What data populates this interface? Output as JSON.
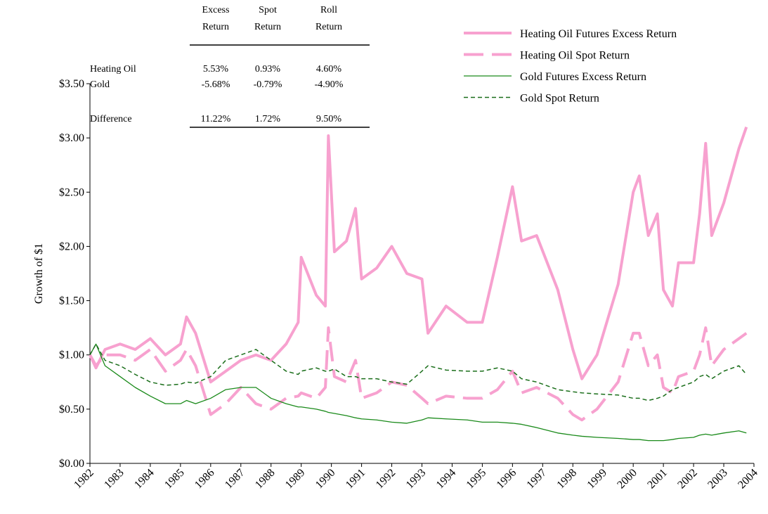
{
  "chart_data": {
    "type": "line",
    "ylabel": "Growth of $1",
    "xlim": [
      1982,
      2004
    ],
    "xticks": [
      1982,
      1983,
      1984,
      1985,
      1986,
      1987,
      1988,
      1989,
      1990,
      1991,
      1992,
      1993,
      1994,
      1995,
      1996,
      1997,
      1998,
      1999,
      2000,
      2001,
      2002,
      2003,
      2004
    ],
    "ylim": [
      0,
      3.5
    ],
    "yticks": [
      {
        "value": 0,
        "label": "$0.00"
      },
      {
        "value": 0.5,
        "label": "$0.50"
      },
      {
        "value": 1,
        "label": "$1.00"
      },
      {
        "value": 1.5,
        "label": "$1.50"
      },
      {
        "value": 2,
        "label": "$2.00"
      },
      {
        "value": 2.5,
        "label": "$2.50"
      },
      {
        "value": 3,
        "label": "$3.00"
      },
      {
        "value": 3.5,
        "label": "$3.50"
      }
    ],
    "legend": "top-right",
    "x": [
      1982.0,
      1982.2,
      1982.5,
      1983.0,
      1983.5,
      1984.0,
      1984.5,
      1985.0,
      1985.2,
      1985.5,
      1986.0,
      1986.5,
      1987.0,
      1987.5,
      1988.0,
      1988.5,
      1988.9,
      1989.0,
      1989.5,
      1989.8,
      1989.9,
      1990.1,
      1990.5,
      1990.8,
      1991.0,
      1991.5,
      1992.0,
      1992.5,
      1993.0,
      1993.2,
      1993.8,
      1994.5,
      1995.0,
      1995.5,
      1996.0,
      1996.3,
      1996.8,
      1997.5,
      1998.0,
      1998.3,
      1998.8,
      1999.5,
      2000.0,
      2000.2,
      2000.5,
      2000.8,
      2001.0,
      2001.3,
      2001.5,
      2002.0,
      2002.2,
      2002.4,
      2002.6,
      2003.0,
      2003.5,
      2003.75
    ],
    "series": [
      {
        "name": "Heating Oil Futures Excess Return",
        "color": "#f7a1cf",
        "style": "solid",
        "width": 4,
        "values": [
          1.0,
          0.88,
          1.05,
          1.1,
          1.05,
          1.15,
          1.0,
          1.1,
          1.35,
          1.2,
          0.75,
          0.85,
          0.95,
          1.0,
          0.95,
          1.1,
          1.3,
          1.9,
          1.55,
          1.45,
          3.02,
          1.95,
          2.05,
          2.35,
          1.7,
          1.8,
          2.0,
          1.75,
          1.7,
          1.2,
          1.45,
          1.3,
          1.3,
          1.9,
          2.55,
          2.05,
          2.1,
          1.6,
          1.05,
          0.78,
          1.0,
          1.65,
          2.5,
          2.65,
          2.1,
          2.3,
          1.6,
          1.45,
          1.85,
          1.85,
          2.3,
          2.95,
          2.1,
          2.4,
          2.9,
          3.1
        ]
      },
      {
        "name": "Heating Oil Spot Return",
        "color": "#f7a1cf",
        "style": "dashed",
        "width": 4,
        "values": [
          1.0,
          0.9,
          1.0,
          1.0,
          0.95,
          1.05,
          0.85,
          0.95,
          1.05,
          0.9,
          0.45,
          0.55,
          0.7,
          0.55,
          0.5,
          0.6,
          0.62,
          0.65,
          0.6,
          0.7,
          1.25,
          0.8,
          0.75,
          0.95,
          0.6,
          0.65,
          0.75,
          0.72,
          0.6,
          0.55,
          0.62,
          0.6,
          0.6,
          0.68,
          0.85,
          0.65,
          0.7,
          0.6,
          0.45,
          0.4,
          0.5,
          0.75,
          1.2,
          1.2,
          0.9,
          1.0,
          0.7,
          0.65,
          0.8,
          0.85,
          1.0,
          1.25,
          0.9,
          1.05,
          1.15,
          1.2
        ]
      },
      {
        "name": "Gold Futures Excess Return",
        "color": "#1a8a1a",
        "style": "solid",
        "width": 1.3,
        "values": [
          1.0,
          1.1,
          0.9,
          0.8,
          0.7,
          0.62,
          0.55,
          0.55,
          0.58,
          0.55,
          0.6,
          0.68,
          0.7,
          0.7,
          0.6,
          0.55,
          0.52,
          0.52,
          0.5,
          0.48,
          0.47,
          0.46,
          0.44,
          0.42,
          0.41,
          0.4,
          0.38,
          0.37,
          0.4,
          0.42,
          0.41,
          0.4,
          0.38,
          0.38,
          0.37,
          0.36,
          0.33,
          0.28,
          0.26,
          0.25,
          0.24,
          0.23,
          0.22,
          0.22,
          0.21,
          0.21,
          0.21,
          0.22,
          0.23,
          0.24,
          0.26,
          0.27,
          0.26,
          0.28,
          0.3,
          0.28
        ]
      },
      {
        "name": "Gold Spot Return",
        "color": "#1a6e1a",
        "style": "dashed",
        "width": 1.5,
        "values": [
          1.0,
          1.1,
          0.95,
          0.9,
          0.82,
          0.75,
          0.72,
          0.73,
          0.75,
          0.74,
          0.8,
          0.95,
          1.0,
          1.05,
          0.95,
          0.85,
          0.82,
          0.85,
          0.88,
          0.85,
          0.85,
          0.87,
          0.8,
          0.8,
          0.78,
          0.78,
          0.75,
          0.73,
          0.85,
          0.9,
          0.86,
          0.85,
          0.85,
          0.88,
          0.85,
          0.78,
          0.75,
          0.68,
          0.66,
          0.65,
          0.64,
          0.63,
          0.6,
          0.6,
          0.58,
          0.6,
          0.62,
          0.68,
          0.7,
          0.75,
          0.8,
          0.82,
          0.78,
          0.85,
          0.9,
          0.82
        ]
      }
    ],
    "table": {
      "columns": [
        [
          "Excess",
          "Return"
        ],
        [
          "Spot",
          "Return"
        ],
        [
          "Roll",
          "Return"
        ]
      ],
      "rows": [
        {
          "label": "Heating Oil",
          "values": [
            "5.53%",
            "0.93%",
            "4.60%"
          ]
        },
        {
          "label": "Gold",
          "values": [
            "-5.68%",
            "-0.79%",
            "-4.90%"
          ]
        },
        {
          "label": "Difference",
          "values": [
            "11.22%",
            "1.72%",
            "9.50%"
          ]
        }
      ]
    }
  }
}
